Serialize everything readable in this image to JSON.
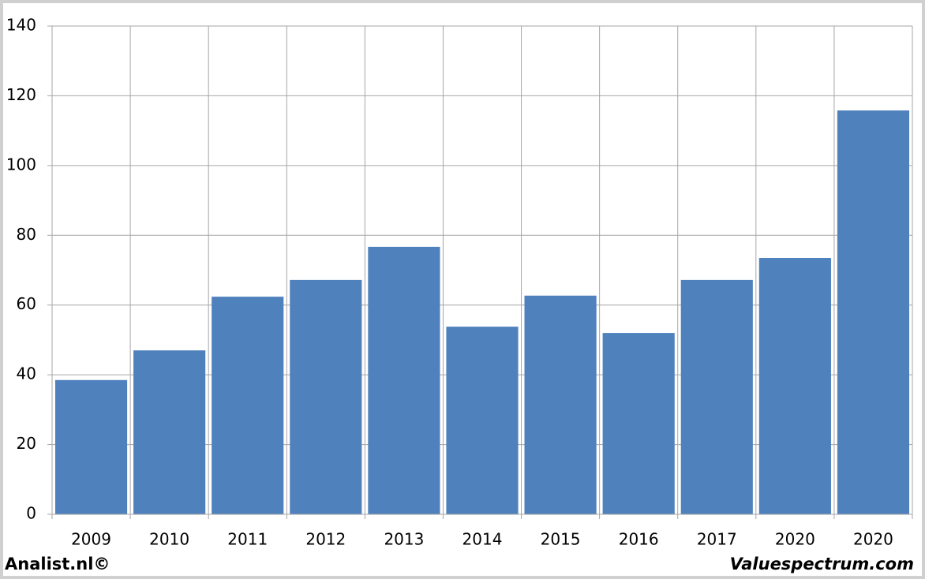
{
  "chart_data": {
    "type": "bar",
    "categories": [
      "2009",
      "2010",
      "2011",
      "2012",
      "2013",
      "2014",
      "2015",
      "2016",
      "2017",
      "2020",
      "2020"
    ],
    "values": [
      38.5,
      47.0,
      62.4,
      67.2,
      76.7,
      53.8,
      62.7,
      52.0,
      67.2,
      73.5,
      115.8
    ],
    "color": "#4f81bd",
    "ylim": [
      0,
      140
    ],
    "yticks": [
      0,
      20,
      40,
      60,
      80,
      100,
      120,
      140
    ],
    "grid": true
  },
  "footer": {
    "left": "Analist.nl©",
    "right": "Valuespectrum.com"
  }
}
